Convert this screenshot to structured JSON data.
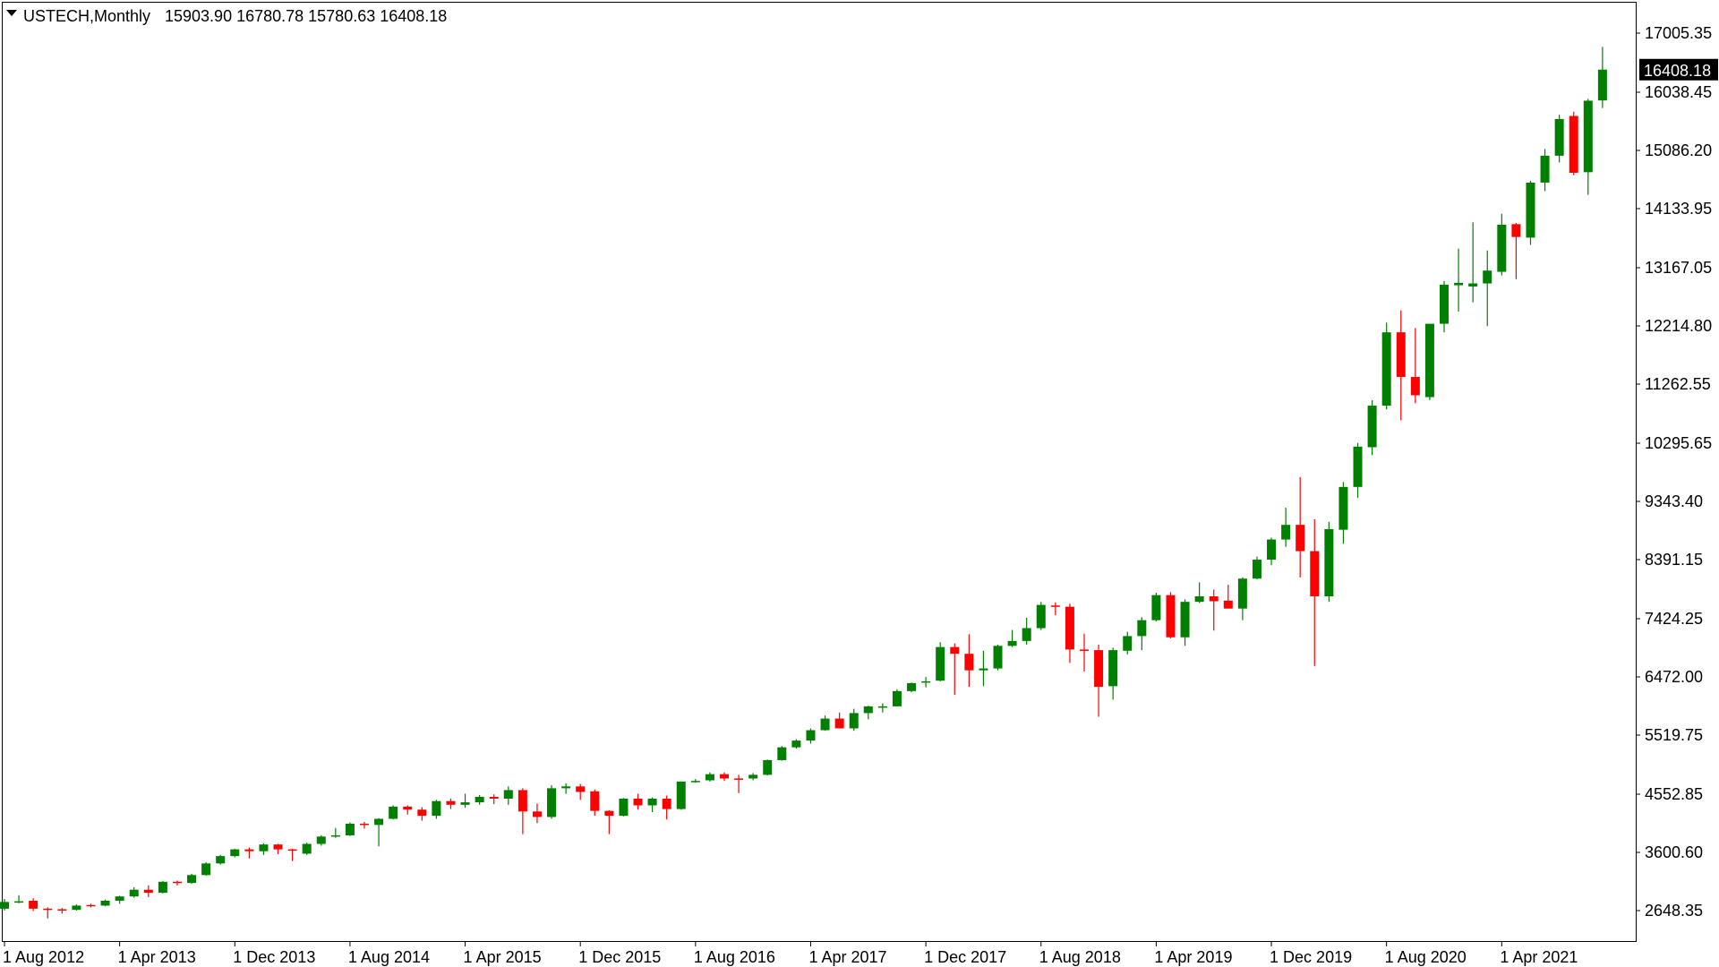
{
  "header": {
    "symbol": "USTECH,Monthly",
    "ohlc": "15903.90 16780.78 15780.63 16408.18"
  },
  "current_price": {
    "value": 16408.18,
    "label": "16408.18"
  },
  "colors": {
    "up": "#008000",
    "down": "#ff0000",
    "frame": "#000000",
    "background": "#ffffff",
    "badge": "#000000"
  },
  "icons": {
    "menu": "triangle-down-icon"
  },
  "chart_data": {
    "type": "candlestick",
    "title": "USTECH,Monthly",
    "xlabel": "",
    "ylabel": "",
    "grid": false,
    "ylim": [
      2250,
      17470
    ],
    "yticks": [
      2648.35,
      3600.6,
      4552.85,
      5519.75,
      6472.0,
      7424.25,
      8391.15,
      9343.4,
      10295.65,
      11262.55,
      12214.8,
      13167.05,
      14133.95,
      15086.2,
      16038.45,
      17005.35
    ],
    "ytick_labels": [
      "2648.35",
      "3600.60",
      "4552.85",
      "5519.75",
      "6472.00",
      "7424.25",
      "8391.15",
      "9343.40",
      "10295.65",
      "11262.55",
      "12214.80",
      "13167.05",
      "14133.95",
      "15086.20",
      "16038.45",
      "17005.35"
    ],
    "xtick_labels": [
      {
        "label": "1 Aug 2012",
        "index": 0
      },
      {
        "label": "1 Apr 2013",
        "index": 8
      },
      {
        "label": "1 Dec 2013",
        "index": 16
      },
      {
        "label": "1 Aug 2014",
        "index": 24
      },
      {
        "label": "1 Apr 2015",
        "index": 32
      },
      {
        "label": "1 Dec 2015",
        "index": 40
      },
      {
        "label": "1 Aug 2016",
        "index": 48
      },
      {
        "label": "1 Apr 2017",
        "index": 56
      },
      {
        "label": "1 Dec 2017",
        "index": 64
      },
      {
        "label": "1 Aug 2018",
        "index": 72
      },
      {
        "label": "1 Apr 2019",
        "index": 80
      },
      {
        "label": "1 Dec 2019",
        "index": 88
      },
      {
        "label": "1 Aug 2020",
        "index": 96
      },
      {
        "label": "1 Apr 2021",
        "index": 104
      }
    ],
    "candles": [
      {
        "date": "2012-08",
        "o": 2680,
        "h": 2840,
        "l": 2650,
        "c": 2790
      },
      {
        "date": "2012-09",
        "o": 2790,
        "h": 2900,
        "l": 2770,
        "c": 2800
      },
      {
        "date": "2012-10",
        "o": 2810,
        "h": 2850,
        "l": 2640,
        "c": 2680
      },
      {
        "date": "2012-11",
        "o": 2680,
        "h": 2700,
        "l": 2520,
        "c": 2670
      },
      {
        "date": "2012-12",
        "o": 2670,
        "h": 2690,
        "l": 2600,
        "c": 2660
      },
      {
        "date": "2013-01",
        "o": 2660,
        "h": 2750,
        "l": 2650,
        "c": 2730
      },
      {
        "date": "2013-02",
        "o": 2740,
        "h": 2760,
        "l": 2700,
        "c": 2720
      },
      {
        "date": "2013-03",
        "o": 2730,
        "h": 2830,
        "l": 2720,
        "c": 2810
      },
      {
        "date": "2013-04",
        "o": 2810,
        "h": 2890,
        "l": 2760,
        "c": 2880
      },
      {
        "date": "2013-05",
        "o": 2880,
        "h": 3030,
        "l": 2860,
        "c": 2990
      },
      {
        "date": "2013-06",
        "o": 2990,
        "h": 3060,
        "l": 2870,
        "c": 2940
      },
      {
        "date": "2013-07",
        "o": 2940,
        "h": 3130,
        "l": 2930,
        "c": 3120
      },
      {
        "date": "2013-08",
        "o": 3120,
        "h": 3140,
        "l": 3060,
        "c": 3100
      },
      {
        "date": "2013-09",
        "o": 3100,
        "h": 3250,
        "l": 3090,
        "c": 3230
      },
      {
        "date": "2013-10",
        "o": 3230,
        "h": 3440,
        "l": 3220,
        "c": 3420
      },
      {
        "date": "2013-11",
        "o": 3420,
        "h": 3560,
        "l": 3400,
        "c": 3540
      },
      {
        "date": "2013-12",
        "o": 3540,
        "h": 3660,
        "l": 3520,
        "c": 3650
      },
      {
        "date": "2014-01",
        "o": 3650,
        "h": 3680,
        "l": 3500,
        "c": 3620
      },
      {
        "date": "2014-02",
        "o": 3620,
        "h": 3750,
        "l": 3560,
        "c": 3730
      },
      {
        "date": "2014-03",
        "o": 3730,
        "h": 3740,
        "l": 3570,
        "c": 3650
      },
      {
        "date": "2014-04",
        "o": 3650,
        "h": 3660,
        "l": 3460,
        "c": 3640
      },
      {
        "date": "2014-05",
        "o": 3580,
        "h": 3760,
        "l": 3560,
        "c": 3740
      },
      {
        "date": "2014-06",
        "o": 3740,
        "h": 3880,
        "l": 3710,
        "c": 3860
      },
      {
        "date": "2014-07",
        "o": 3860,
        "h": 4000,
        "l": 3840,
        "c": 3880
      },
      {
        "date": "2014-08",
        "o": 3880,
        "h": 4090,
        "l": 3870,
        "c": 4070
      },
      {
        "date": "2014-09",
        "o": 4070,
        "h": 4100,
        "l": 3990,
        "c": 4050
      },
      {
        "date": "2014-10",
        "o": 4050,
        "h": 4160,
        "l": 3700,
        "c": 4150
      },
      {
        "date": "2014-11",
        "o": 4150,
        "h": 4370,
        "l": 4140,
        "c": 4350
      },
      {
        "date": "2014-12",
        "o": 4350,
        "h": 4370,
        "l": 4220,
        "c": 4300
      },
      {
        "date": "2015-01",
        "o": 4300,
        "h": 4340,
        "l": 4120,
        "c": 4200
      },
      {
        "date": "2015-02",
        "o": 4200,
        "h": 4460,
        "l": 4150,
        "c": 4440
      },
      {
        "date": "2015-03",
        "o": 4440,
        "h": 4480,
        "l": 4310,
        "c": 4380
      },
      {
        "date": "2015-04",
        "o": 4380,
        "h": 4560,
        "l": 4330,
        "c": 4420
      },
      {
        "date": "2015-05",
        "o": 4420,
        "h": 4540,
        "l": 4380,
        "c": 4510
      },
      {
        "date": "2015-06",
        "o": 4510,
        "h": 4550,
        "l": 4390,
        "c": 4480
      },
      {
        "date": "2015-07",
        "o": 4480,
        "h": 4680,
        "l": 4380,
        "c": 4620
      },
      {
        "date": "2015-08",
        "o": 4620,
        "h": 4650,
        "l": 3900,
        "c": 4270
      },
      {
        "date": "2015-09",
        "o": 4270,
        "h": 4400,
        "l": 4080,
        "c": 4180
      },
      {
        "date": "2015-10",
        "o": 4180,
        "h": 4700,
        "l": 4150,
        "c": 4650
      },
      {
        "date": "2015-11",
        "o": 4650,
        "h": 4730,
        "l": 4560,
        "c": 4680
      },
      {
        "date": "2015-12",
        "o": 4680,
        "h": 4720,
        "l": 4460,
        "c": 4590
      },
      {
        "date": "2016-01",
        "o": 4600,
        "h": 4630,
        "l": 4200,
        "c": 4280
      },
      {
        "date": "2016-02",
        "o": 4280,
        "h": 4290,
        "l": 3900,
        "c": 4200
      },
      {
        "date": "2016-03",
        "o": 4200,
        "h": 4490,
        "l": 4190,
        "c": 4480
      },
      {
        "date": "2016-04",
        "o": 4480,
        "h": 4560,
        "l": 4300,
        "c": 4370
      },
      {
        "date": "2016-05",
        "o": 4370,
        "h": 4500,
        "l": 4260,
        "c": 4480
      },
      {
        "date": "2016-06",
        "o": 4480,
        "h": 4530,
        "l": 4140,
        "c": 4310
      },
      {
        "date": "2016-07",
        "o": 4310,
        "h": 4760,
        "l": 4300,
        "c": 4760
      },
      {
        "date": "2016-08",
        "o": 4760,
        "h": 4800,
        "l": 4740,
        "c": 4770
      },
      {
        "date": "2016-09",
        "o": 4780,
        "h": 4910,
        "l": 4760,
        "c": 4880
      },
      {
        "date": "2016-10",
        "o": 4880,
        "h": 4910,
        "l": 4770,
        "c": 4810
      },
      {
        "date": "2016-11",
        "o": 4810,
        "h": 4870,
        "l": 4570,
        "c": 4800
      },
      {
        "date": "2016-12",
        "o": 4810,
        "h": 4900,
        "l": 4780,
        "c": 4870
      },
      {
        "date": "2017-01",
        "o": 4870,
        "h": 5120,
        "l": 4860,
        "c": 5110
      },
      {
        "date": "2017-02",
        "o": 5110,
        "h": 5340,
        "l": 5100,
        "c": 5320
      },
      {
        "date": "2017-03",
        "o": 5320,
        "h": 5450,
        "l": 5300,
        "c": 5430
      },
      {
        "date": "2017-04",
        "o": 5430,
        "h": 5630,
        "l": 5380,
        "c": 5600
      },
      {
        "date": "2017-05",
        "o": 5600,
        "h": 5840,
        "l": 5590,
        "c": 5790
      },
      {
        "date": "2017-06",
        "o": 5790,
        "h": 5890,
        "l": 5630,
        "c": 5630
      },
      {
        "date": "2017-07",
        "o": 5630,
        "h": 5950,
        "l": 5590,
        "c": 5880
      },
      {
        "date": "2017-08",
        "o": 5880,
        "h": 6000,
        "l": 5780,
        "c": 5990
      },
      {
        "date": "2017-09",
        "o": 5990,
        "h": 6040,
        "l": 5890,
        "c": 5990
      },
      {
        "date": "2017-10",
        "o": 5990,
        "h": 6270,
        "l": 5990,
        "c": 6240
      },
      {
        "date": "2017-11",
        "o": 6240,
        "h": 6380,
        "l": 6220,
        "c": 6370
      },
      {
        "date": "2017-12",
        "o": 6380,
        "h": 6470,
        "l": 6300,
        "c": 6400
      },
      {
        "date": "2018-01",
        "o": 6410,
        "h": 7040,
        "l": 6400,
        "c": 6960
      },
      {
        "date": "2018-02",
        "o": 6960,
        "h": 7020,
        "l": 6180,
        "c": 6850
      },
      {
        "date": "2018-03",
        "o": 6850,
        "h": 7170,
        "l": 6310,
        "c": 6580
      },
      {
        "date": "2018-04",
        "o": 6580,
        "h": 6900,
        "l": 6320,
        "c": 6610
      },
      {
        "date": "2018-05",
        "o": 6610,
        "h": 7000,
        "l": 6580,
        "c": 6980
      },
      {
        "date": "2018-06",
        "o": 6980,
        "h": 7240,
        "l": 6960,
        "c": 7060
      },
      {
        "date": "2018-07",
        "o": 7060,
        "h": 7440,
        "l": 7000,
        "c": 7270
      },
      {
        "date": "2018-08",
        "o": 7270,
        "h": 7700,
        "l": 7240,
        "c": 7650
      },
      {
        "date": "2018-09",
        "o": 7640,
        "h": 7690,
        "l": 7480,
        "c": 7620
      },
      {
        "date": "2018-10",
        "o": 7620,
        "h": 7670,
        "l": 6700,
        "c": 6920
      },
      {
        "date": "2018-11",
        "o": 6920,
        "h": 7180,
        "l": 6560,
        "c": 6900
      },
      {
        "date": "2018-12",
        "o": 6910,
        "h": 7000,
        "l": 5820,
        "c": 6310
      },
      {
        "date": "2019-01",
        "o": 6320,
        "h": 6950,
        "l": 6100,
        "c": 6910
      },
      {
        "date": "2019-02",
        "o": 6900,
        "h": 7210,
        "l": 6840,
        "c": 7140
      },
      {
        "date": "2019-03",
        "o": 7140,
        "h": 7450,
        "l": 6910,
        "c": 7400
      },
      {
        "date": "2019-04",
        "o": 7400,
        "h": 7850,
        "l": 7380,
        "c": 7810
      },
      {
        "date": "2019-05",
        "o": 7810,
        "h": 7860,
        "l": 7100,
        "c": 7120
      },
      {
        "date": "2019-06",
        "o": 7120,
        "h": 7740,
        "l": 6980,
        "c": 7700
      },
      {
        "date": "2019-07",
        "o": 7700,
        "h": 8020,
        "l": 7680,
        "c": 7790
      },
      {
        "date": "2019-08",
        "o": 7790,
        "h": 7900,
        "l": 7230,
        "c": 7710
      },
      {
        "date": "2019-09",
        "o": 7720,
        "h": 7980,
        "l": 7600,
        "c": 7590
      },
      {
        "date": "2019-10",
        "o": 7590,
        "h": 8100,
        "l": 7400,
        "c": 8080
      },
      {
        "date": "2019-11",
        "o": 8080,
        "h": 8440,
        "l": 8070,
        "c": 8390
      },
      {
        "date": "2019-12",
        "o": 8390,
        "h": 8750,
        "l": 8300,
        "c": 8720
      },
      {
        "date": "2020-01",
        "o": 8720,
        "h": 9240,
        "l": 8600,
        "c": 8960
      },
      {
        "date": "2020-02",
        "o": 8960,
        "h": 9740,
        "l": 8100,
        "c": 8530
      },
      {
        "date": "2020-03",
        "o": 8530,
        "h": 9050,
        "l": 6650,
        "c": 7790
      },
      {
        "date": "2020-04",
        "o": 7790,
        "h": 9010,
        "l": 7700,
        "c": 8890
      },
      {
        "date": "2020-05",
        "o": 8880,
        "h": 9660,
        "l": 8650,
        "c": 9580
      },
      {
        "date": "2020-06",
        "o": 9580,
        "h": 10300,
        "l": 9400,
        "c": 10240
      },
      {
        "date": "2020-07",
        "o": 10230,
        "h": 11000,
        "l": 10100,
        "c": 10910
      },
      {
        "date": "2020-08",
        "o": 10910,
        "h": 12270,
        "l": 10850,
        "c": 12110
      },
      {
        "date": "2020-09",
        "o": 12110,
        "h": 12470,
        "l": 10670,
        "c": 11380
      },
      {
        "date": "2020-10",
        "o": 11380,
        "h": 12180,
        "l": 10950,
        "c": 11080
      },
      {
        "date": "2020-11",
        "o": 11050,
        "h": 12220,
        "l": 11000,
        "c": 12250
      },
      {
        "date": "2020-12",
        "o": 12250,
        "h": 12950,
        "l": 12110,
        "c": 12890
      },
      {
        "date": "2021-01",
        "o": 12880,
        "h": 13480,
        "l": 12450,
        "c": 12920
      },
      {
        "date": "2021-02",
        "o": 12860,
        "h": 13910,
        "l": 12600,
        "c": 12910
      },
      {
        "date": "2021-03",
        "o": 12910,
        "h": 13450,
        "l": 12210,
        "c": 13120
      },
      {
        "date": "2021-04",
        "o": 13100,
        "h": 14050,
        "l": 13040,
        "c": 13870
      },
      {
        "date": "2021-05",
        "o": 13880,
        "h": 13900,
        "l": 12980,
        "c": 13670
      },
      {
        "date": "2021-06",
        "o": 13660,
        "h": 14590,
        "l": 13540,
        "c": 14560
      },
      {
        "date": "2021-07",
        "o": 14560,
        "h": 15110,
        "l": 14420,
        "c": 15000
      },
      {
        "date": "2021-08",
        "o": 15000,
        "h": 15670,
        "l": 14890,
        "c": 15600
      },
      {
        "date": "2021-09",
        "o": 15650,
        "h": 15720,
        "l": 14680,
        "c": 14720
      },
      {
        "date": "2021-10",
        "o": 14730,
        "h": 15930,
        "l": 14360,
        "c": 15900
      },
      {
        "date": "2021-11",
        "o": 15903.9,
        "h": 16780.78,
        "l": 15780.63,
        "c": 16408.18
      }
    ]
  }
}
